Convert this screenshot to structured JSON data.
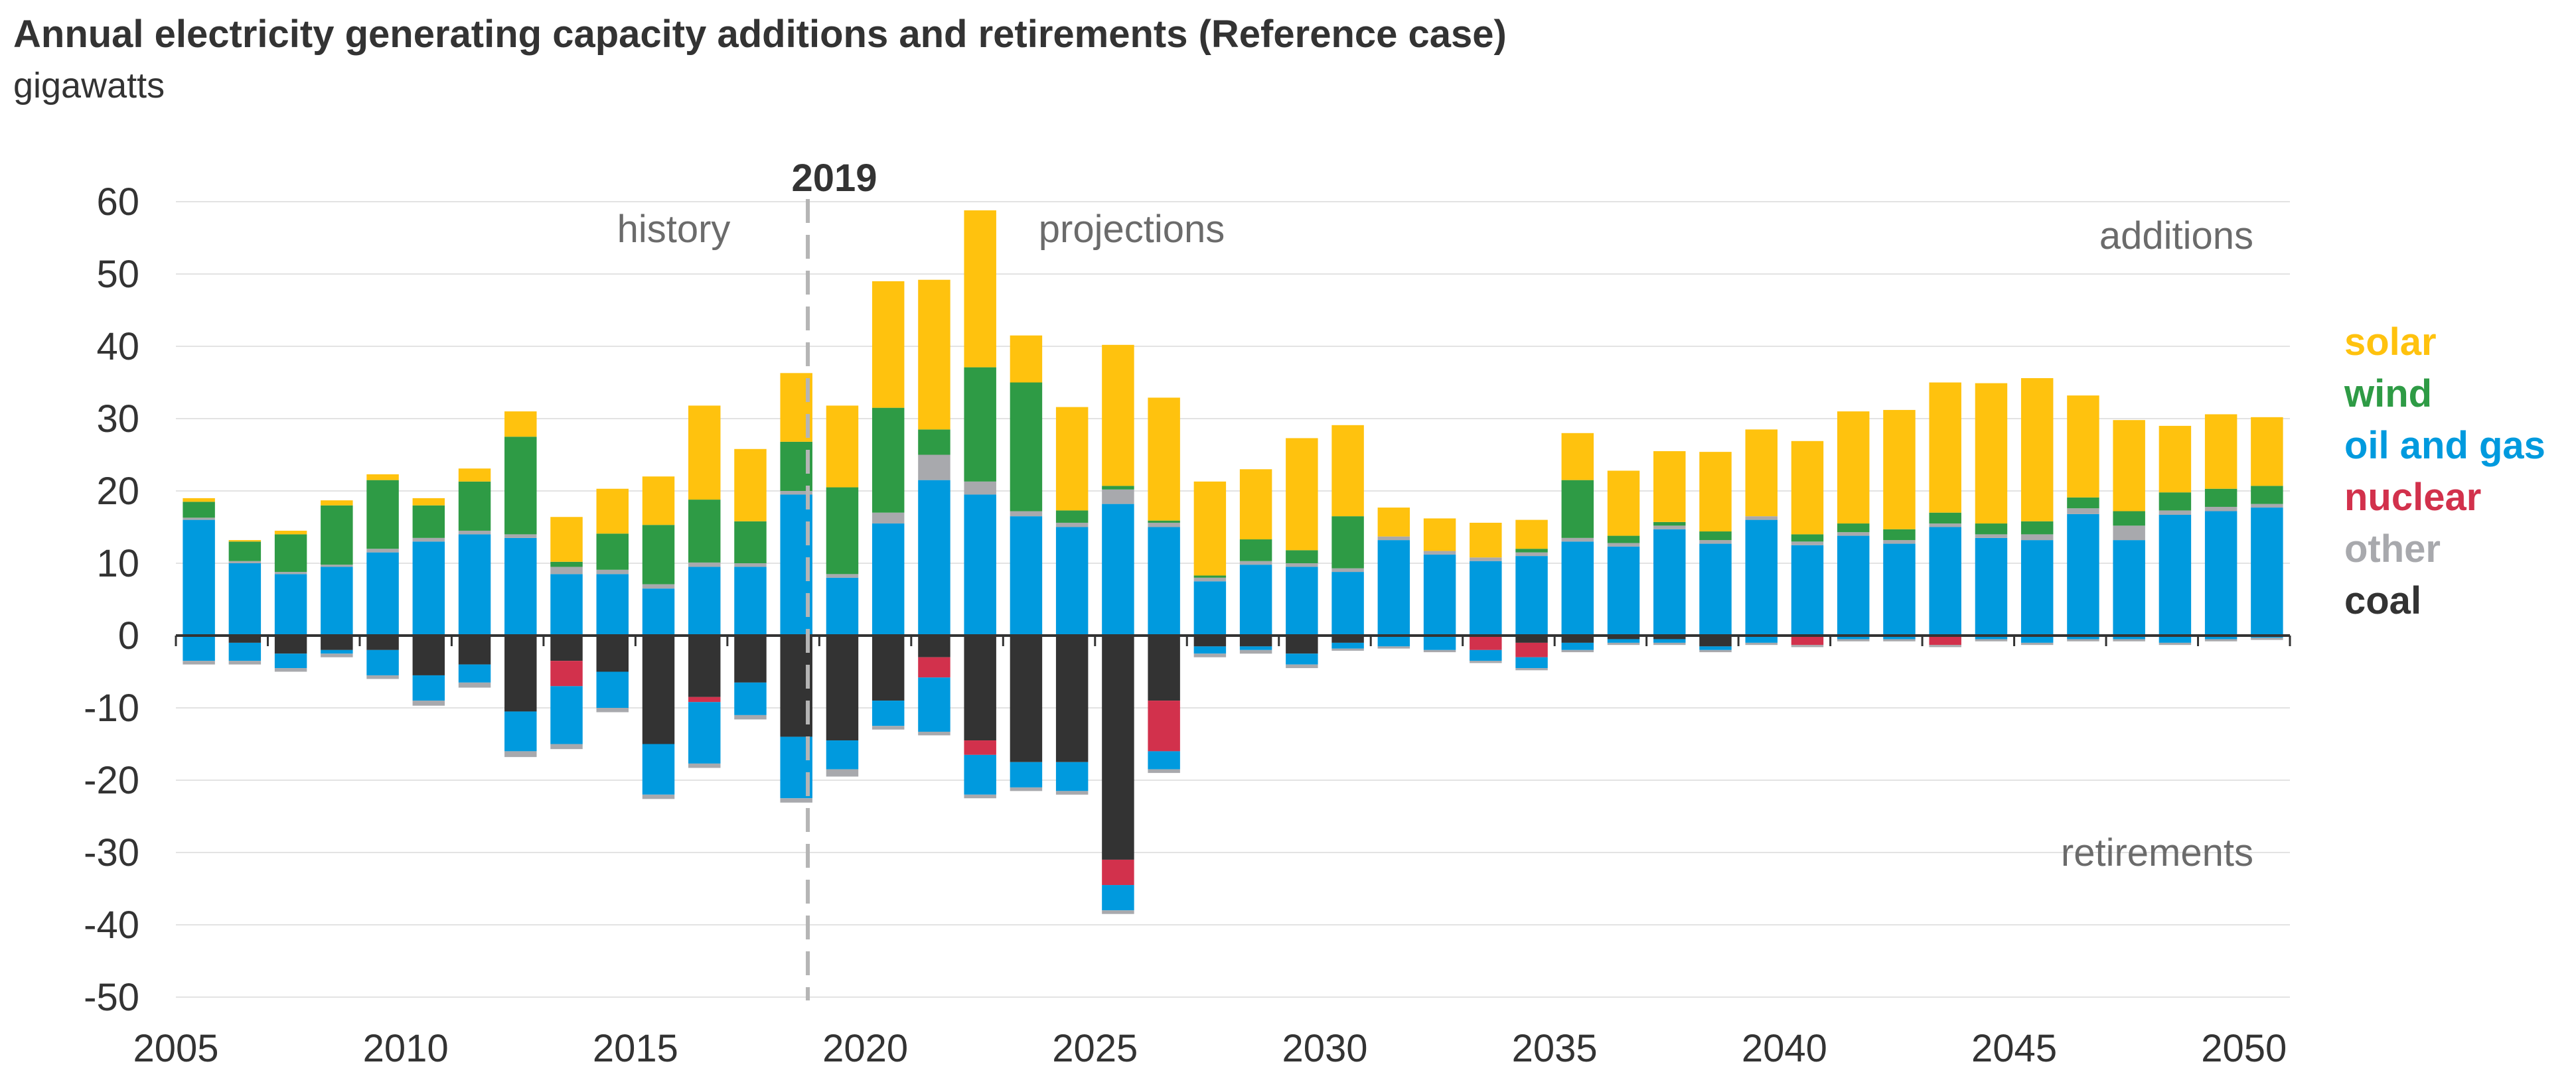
{
  "chart_data": {
    "type": "bar",
    "stacked": true,
    "title": "Annual electricity generating capacity additions and retirements (Reference case)",
    "subtitle": "gigawatts",
    "xlabel": "",
    "ylabel": "gigawatts",
    "ylim": [
      -50,
      60
    ],
    "ytick_labels": [
      "60",
      "50",
      "40",
      "30",
      "20",
      "10",
      "0",
      "-10",
      "-20",
      "-30",
      "-40",
      "-50"
    ],
    "xtick_labels": [
      "2005",
      "2010",
      "2015",
      "2020",
      "2025",
      "2030",
      "2035",
      "2040",
      "2045",
      "2050"
    ],
    "grid": true,
    "divider": {
      "year": 2019,
      "label": "2019"
    },
    "annotations": {
      "history": "history",
      "projections": "projections",
      "additions": "additions",
      "retirements": "retirements"
    },
    "legend": [
      {
        "name": "solar",
        "color": "#FFC20E"
      },
      {
        "name": "wind",
        "color": "#2E9B45"
      },
      {
        "name": "oil and gas",
        "color": "#009ADE"
      },
      {
        "name": "nuclear",
        "color": "#D2314C"
      },
      {
        "name": "other",
        "color": "#A8A9AD"
      },
      {
        "name": "coal",
        "color": "#333333"
      }
    ],
    "years": [
      2005,
      2006,
      2007,
      2008,
      2009,
      2010,
      2011,
      2012,
      2013,
      2014,
      2015,
      2016,
      2017,
      2018,
      2019,
      2020,
      2021,
      2022,
      2023,
      2024,
      2025,
      2026,
      2027,
      2028,
      2029,
      2030,
      2031,
      2032,
      2033,
      2034,
      2035,
      2036,
      2037,
      2038,
      2039,
      2040,
      2041,
      2042,
      2043,
      2044,
      2045,
      2046,
      2047,
      2048,
      2049,
      2050
    ],
    "additions": {
      "coal": [
        0,
        0,
        0,
        0,
        0,
        0,
        0,
        0,
        0,
        0,
        0,
        0,
        0,
        0,
        0,
        0,
        0,
        0,
        0,
        0,
        0,
        0,
        0,
        0,
        0,
        0,
        0,
        0,
        0,
        0,
        0,
        0,
        0,
        0,
        0,
        0,
        0,
        0,
        0,
        0,
        0,
        0,
        0,
        0,
        0,
        0
      ],
      "oil and gas": [
        16,
        10,
        8.5,
        9.5,
        11.5,
        13,
        14,
        13.5,
        8.5,
        8.5,
        6.5,
        9.5,
        9.5,
        19.5,
        8,
        15.5,
        21.5,
        19.5,
        16.5,
        15,
        18.2,
        15,
        7.5,
        9.8,
        9.5,
        8.8,
        13.2,
        11.2,
        10.3,
        11,
        13,
        12.3,
        14.7,
        12.7,
        16,
        12.5,
        13.8,
        12.7,
        15,
        13.5,
        13.2,
        16.8,
        13.2,
        16.7,
        17.2,
        17.7
      ],
      "nuclear": [
        0,
        0,
        0,
        0,
        0,
        0,
        0,
        0,
        0,
        0,
        0,
        0,
        0,
        0,
        0,
        0,
        0,
        0,
        0,
        0,
        0,
        0,
        0,
        0,
        0,
        0,
        0,
        0,
        0,
        0,
        0,
        0,
        0,
        0,
        0,
        0,
        0,
        0,
        0,
        0,
        0,
        0,
        0,
        0,
        0,
        0
      ],
      "other": [
        0.3,
        0.3,
        0.3,
        0.3,
        0.5,
        0.5,
        0.5,
        0.5,
        1.0,
        0.6,
        0.6,
        0.6,
        0.5,
        0.5,
        0.5,
        1.5,
        3.5,
        1.8,
        0.7,
        0.6,
        2.0,
        0.6,
        0.5,
        0.5,
        0.5,
        0.5,
        0.5,
        0.5,
        0.5,
        0.5,
        0.5,
        0.5,
        0.5,
        0.5,
        0.5,
        0.5,
        0.5,
        0.5,
        0.5,
        0.5,
        0.8,
        0.8,
        2.0,
        0.6,
        0.6,
        0.5
      ],
      "wind": [
        2.2,
        2.7,
        5.2,
        8.2,
        9.5,
        4.5,
        6.8,
        13.5,
        0.7,
        5.0,
        8.2,
        8.7,
        5.8,
        6.8,
        12.0,
        14.5,
        3.5,
        15.8,
        17.8,
        1.7,
        0.5,
        0.3,
        0.3,
        3.0,
        1.8,
        7.2,
        0,
        0,
        0,
        0.5,
        8.0,
        1.0,
        0.5,
        1.2,
        0,
        1.0,
        1.2,
        1.5,
        1.5,
        1.5,
        1.8,
        1.5,
        2.0,
        2.5,
        2.5,
        2.5
      ],
      "solar": [
        0.5,
        0.2,
        0.5,
        0.7,
        0.8,
        1.0,
        1.8,
        3.5,
        6.2,
        6.2,
        6.7,
        13.0,
        10.0,
        9.5,
        11.3,
        17.5,
        20.7,
        21.7,
        6.5,
        14.3,
        19.5,
        17.0,
        13.0,
        9.7,
        15.5,
        12.6,
        4.0,
        4.5,
        4.8,
        4.0,
        6.5,
        9.0,
        9.8,
        11.0,
        12.0,
        12.9,
        15.5,
        16.5,
        18.0,
        19.4,
        19.8,
        14.1,
        12.6,
        9.2,
        10.3,
        9.5
      ]
    },
    "retirements": {
      "coal": [
        0,
        -1,
        -2.5,
        -2,
        -2,
        -5.5,
        -4,
        -10.5,
        -3.5,
        -5,
        -15,
        -8.5,
        -6.5,
        -14,
        -14.5,
        -9,
        -3,
        -14.5,
        -17.5,
        -17.5,
        -31,
        -9,
        -1.5,
        -1.5,
        -2.5,
        -1,
        0,
        0,
        0,
        -1,
        -1,
        -0.5,
        -0.5,
        -1.5,
        0,
        0,
        0,
        0,
        0,
        0,
        0,
        0,
        0,
        0,
        0,
        0
      ],
      "nuclear": [
        0,
        0,
        0,
        0,
        0,
        0,
        0,
        0,
        -3.5,
        0,
        0,
        -0.7,
        0,
        0,
        0,
        0,
        -2.8,
        -2,
        0,
        0,
        -3.5,
        -7,
        0,
        0,
        0,
        0,
        0,
        0,
        -2,
        -2,
        0,
        0,
        0,
        0,
        0,
        -1.3,
        0,
        0,
        -1.3,
        0,
        0,
        0,
        0,
        0,
        0,
        0
      ],
      "oil and gas": [
        -3.5,
        -2.5,
        -2,
        -0.5,
        -3.5,
        -3.5,
        -2.5,
        -5.5,
        -8,
        -5,
        -7,
        -8.5,
        -4.5,
        -8.5,
        -4,
        -3.5,
        -7.5,
        -5.5,
        -3.5,
        -4,
        -3.5,
        -2.5,
        -1,
        -0.5,
        -1.5,
        -0.8,
        -1.5,
        -2,
        -1.5,
        -1.5,
        -1,
        -0.5,
        -0.5,
        -0.5,
        -1,
        0,
        -0.5,
        -0.5,
        0,
        -0.5,
        -1,
        -0.5,
        -0.5,
        -1,
        -0.5,
        -0.3
      ],
      "other": [
        -0.5,
        -0.5,
        -0.5,
        -0.5,
        -0.5,
        -0.7,
        -0.7,
        -0.8,
        -0.7,
        -0.6,
        -0.6,
        -0.6,
        -0.6,
        -0.6,
        -1,
        -0.5,
        -0.5,
        -0.5,
        -0.5,
        -0.5,
        -0.5,
        -0.5,
        -0.5,
        -0.5,
        -0.5,
        -0.3,
        -0.3,
        -0.3,
        -0.3,
        -0.3,
        -0.3,
        -0.3,
        -0.3,
        -0.3,
        -0.3,
        -0.3,
        -0.3,
        -0.3,
        -0.3,
        -0.3,
        -0.3,
        -0.3,
        -0.3,
        -0.3,
        -0.3,
        -0.3
      ]
    }
  }
}
